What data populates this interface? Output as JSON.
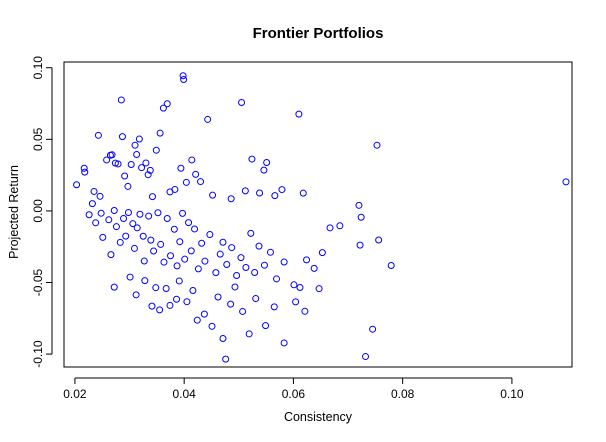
{
  "chart_data": {
    "type": "scatter",
    "title": "Frontier Portfolios",
    "xlabel": "Consistency",
    "ylabel": "Projected Return",
    "xlim": [
      0.018,
      0.111
    ],
    "ylim": [
      -0.109,
      0.104
    ],
    "xticks": [
      0.02,
      0.04,
      0.06,
      0.08,
      0.1
    ],
    "xtick_labels": [
      "0.02",
      "0.04",
      "0.06",
      "0.08",
      "0.10"
    ],
    "yticks": [
      -0.1,
      -0.05,
      0.0,
      0.05,
      0.1
    ],
    "ytick_labels": [
      "-0.10",
      "-0.05",
      "0.00",
      "0.05",
      "0.10"
    ],
    "grid": false,
    "legend": "none",
    "point_color": "#0000ff",
    "marker": "open-circle",
    "series": [
      {
        "points": [
          [
            0.0203,
            0.0183
          ],
          [
            0.0217,
            0.0298
          ],
          [
            0.0218,
            0.0271
          ],
          [
            0.0235,
            0.0136
          ],
          [
            0.0243,
            0.0528
          ],
          [
            0.0246,
            0.0102
          ],
          [
            0.0258,
            0.0356
          ],
          [
            0.0265,
            0.0389
          ],
          [
            0.0268,
            0.0392
          ],
          [
            0.0274,
            0.0334
          ],
          [
            0.0279,
            0.0328
          ],
          [
            0.0285,
            0.0775
          ],
          [
            0.0287,
            0.0519
          ],
          [
            0.0291,
            0.0244
          ],
          [
            0.0297,
            0.0171
          ],
          [
            0.0303,
            0.0324
          ],
          [
            0.031,
            0.0459
          ],
          [
            0.0313,
            0.0394
          ],
          [
            0.0318,
            0.0502
          ],
          [
            0.0322,
            0.0302
          ],
          [
            0.033,
            0.0335
          ],
          [
            0.0334,
            0.0253
          ],
          [
            0.0338,
            0.0283
          ],
          [
            0.0342,
            0.01
          ],
          [
            0.0349,
            0.0424
          ],
          [
            0.0356,
            0.0543
          ],
          [
            0.0362,
            0.0718
          ],
          [
            0.0369,
            0.0748
          ],
          [
            0.0374,
            0.0133
          ],
          [
            0.0383,
            0.015
          ],
          [
            0.0394,
            0.0298
          ],
          [
            0.0398,
            0.0944
          ],
          [
            0.0399,
            0.0918
          ],
          [
            0.0404,
            0.0199
          ],
          [
            0.0414,
            0.0356
          ],
          [
            0.0421,
            0.0255
          ],
          [
            0.043,
            0.0205
          ],
          [
            0.0443,
            0.0639
          ],
          [
            0.0452,
            0.011
          ],
          [
            0.0486,
            0.0085
          ],
          [
            0.0505,
            0.0757
          ],
          [
            0.0512,
            0.014
          ],
          [
            0.0524,
            0.0362
          ],
          [
            0.0538,
            0.0125
          ],
          [
            0.0546,
            0.0285
          ],
          [
            0.0551,
            0.0338
          ],
          [
            0.0566,
            0.0107
          ],
          [
            0.0579,
            0.0149
          ],
          [
            0.061,
            0.0676
          ],
          [
            0.0618,
            0.0124
          ],
          [
            0.072,
            0.0039
          ],
          [
            0.0724,
            -0.0044
          ],
          [
            0.0753,
            0.0459
          ],
          [
            0.1099,
            0.0203
          ],
          [
            0.0226,
            -0.0027
          ],
          [
            0.0232,
            0.0051
          ],
          [
            0.0238,
            -0.0083
          ],
          [
            0.0248,
            -0.0016
          ],
          [
            0.0251,
            -0.0185
          ],
          [
            0.0262,
            -0.0062
          ],
          [
            0.0266,
            -0.0305
          ],
          [
            0.0272,
            0.0003
          ],
          [
            0.0276,
            -0.011
          ],
          [
            0.0283,
            -0.022
          ],
          [
            0.0289,
            -0.0053
          ],
          [
            0.0293,
            -0.0176
          ],
          [
            0.0298,
            -0.0011
          ],
          [
            0.0306,
            -0.0089
          ],
          [
            0.0309,
            -0.0262
          ],
          [
            0.0314,
            -0.0118
          ],
          [
            0.0319,
            -0.0023
          ],
          [
            0.0325,
            -0.0177
          ],
          [
            0.0327,
            -0.035
          ],
          [
            0.0335,
            -0.0036
          ],
          [
            0.0339,
            -0.0204
          ],
          [
            0.0344,
            -0.028
          ],
          [
            0.0352,
            -0.0013
          ],
          [
            0.0357,
            -0.0234
          ],
          [
            0.0363,
            -0.0358
          ],
          [
            0.0369,
            -0.0053
          ],
          [
            0.0375,
            -0.0313
          ],
          [
            0.0382,
            -0.0128
          ],
          [
            0.0387,
            -0.0384
          ],
          [
            0.0392,
            -0.0215
          ],
          [
            0.0397,
            -0.0017
          ],
          [
            0.0401,
            -0.0337
          ],
          [
            0.0408,
            -0.0082
          ],
          [
            0.0413,
            -0.0279
          ],
          [
            0.0419,
            -0.0126
          ],
          [
            0.0426,
            -0.0405
          ],
          [
            0.0432,
            -0.0226
          ],
          [
            0.0438,
            -0.0351
          ],
          [
            0.0447,
            -0.0165
          ],
          [
            0.0458,
            -0.0431
          ],
          [
            0.0466,
            -0.0302
          ],
          [
            0.0471,
            -0.0219
          ],
          [
            0.0478,
            -0.0374
          ],
          [
            0.0487,
            -0.0256
          ],
          [
            0.0496,
            -0.0451
          ],
          [
            0.0504,
            -0.0326
          ],
          [
            0.0513,
            -0.0395
          ],
          [
            0.0522,
            -0.0157
          ],
          [
            0.0529,
            -0.043
          ],
          [
            0.0537,
            -0.0246
          ],
          [
            0.0547,
            -0.0379
          ],
          [
            0.0558,
            -0.0289
          ],
          [
            0.0569,
            -0.0475
          ],
          [
            0.0583,
            -0.0357
          ],
          [
            0.0601,
            -0.0516
          ],
          [
            0.0612,
            -0.0535
          ],
          [
            0.0624,
            -0.0342
          ],
          [
            0.0638,
            -0.0401
          ],
          [
            0.0653,
            -0.0291
          ],
          [
            0.0667,
            -0.0118
          ],
          [
            0.0685,
            -0.0104
          ],
          [
            0.0722,
            -0.0239
          ],
          [
            0.0756,
            -0.0203
          ],
          [
            0.0779,
            -0.0381
          ],
          [
            0.0272,
            -0.0532
          ],
          [
            0.0301,
            -0.0462
          ],
          [
            0.0312,
            -0.0586
          ],
          [
            0.0328,
            -0.0487
          ],
          [
            0.0341,
            -0.0665
          ],
          [
            0.0348,
            -0.0536
          ],
          [
            0.0355,
            -0.0691
          ],
          [
            0.0367,
            -0.0542
          ],
          [
            0.0374,
            -0.066
          ],
          [
            0.0386,
            -0.0617
          ],
          [
            0.0391,
            -0.0489
          ],
          [
            0.0405,
            -0.0634
          ],
          [
            0.0416,
            -0.0556
          ],
          [
            0.0424,
            -0.0763
          ],
          [
            0.0437,
            -0.0721
          ],
          [
            0.0451,
            -0.0806
          ],
          [
            0.0462,
            -0.0601
          ],
          [
            0.0471,
            -0.0891
          ],
          [
            0.0476,
            -0.1035
          ],
          [
            0.0485,
            -0.0651
          ],
          [
            0.0493,
            -0.0531
          ],
          [
            0.0507,
            -0.0702
          ],
          [
            0.0519,
            -0.0859
          ],
          [
            0.0531,
            -0.0612
          ],
          [
            0.0549,
            -0.0801
          ],
          [
            0.0565,
            -0.067
          ],
          [
            0.0583,
            -0.0922
          ],
          [
            0.0604,
            -0.0635
          ],
          [
            0.0621,
            -0.0701
          ],
          [
            0.0647,
            -0.0543
          ],
          [
            0.0732,
            -0.1017
          ],
          [
            0.0745,
            -0.0826
          ]
        ]
      }
    ]
  }
}
